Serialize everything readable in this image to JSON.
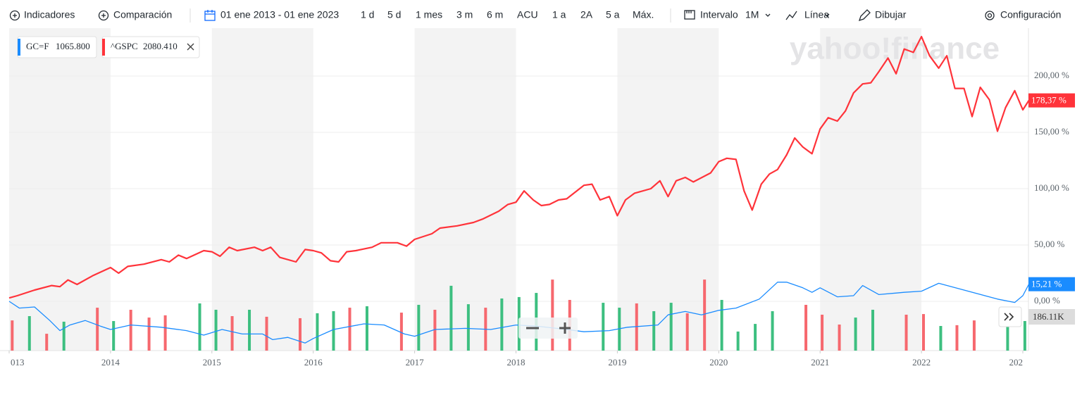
{
  "toolbar": {
    "indicators": "Indicadores",
    "comparison": "Comparación",
    "date_range": "01 ene 2013 - 01 ene 2023",
    "ranges": [
      "1 d",
      "5 d",
      "1 mes",
      "3 m",
      "6 m",
      "ACU",
      "1 a",
      "2A",
      "5 a",
      "Máx."
    ],
    "interval_label": "Intervalo",
    "interval": "1M",
    "chart_style": "Línea",
    "draw": "Dibujar",
    "settings": "Configuración"
  },
  "chart_data": {
    "type": "line",
    "watermark": "yahoo!finance",
    "xlim": [
      2013,
      2023.06
    ],
    "ylim": [
      -43.75,
      242.5
    ],
    "y2lim": [
      0,
      2029
    ],
    "xticks": [
      {
        "value": 2013,
        "label": "013"
      },
      2014,
      2015,
      2016,
      2017,
      2018,
      2019,
      2020,
      2021,
      2022,
      {
        "value": 2023,
        "label": "202"
      }
    ],
    "yticks": [
      {
        "value": 0,
        "label": "0,00 %"
      },
      {
        "value": 50,
        "label": "50,00 %"
      },
      {
        "value": 100,
        "label": "100,00 %"
      },
      {
        "value": 150,
        "label": "150,00 %"
      },
      {
        "value": 200,
        "label": "200,00 %"
      }
    ],
    "grid": true,
    "series": [
      {
        "name": "^GSPC",
        "base_price": "2080.410",
        "color": "#ff333a",
        "end_label": "178,37 %",
        "x": [
          2013.0,
          2013.08,
          2013.25,
          2013.42,
          2013.5,
          2013.58,
          2013.67,
          2013.83,
          2014.0,
          2014.08,
          2014.17,
          2014.33,
          2014.5,
          2014.58,
          2014.67,
          2014.75,
          2014.92,
          2015.0,
          2015.08,
          2015.17,
          2015.25,
          2015.42,
          2015.5,
          2015.58,
          2015.67,
          2015.83,
          2015.92,
          2016.0,
          2016.08,
          2016.17,
          2016.25,
          2016.33,
          2016.42,
          2016.58,
          2016.67,
          2016.83,
          2016.92,
          2017.0,
          2017.17,
          2017.25,
          2017.42,
          2017.58,
          2017.67,
          2017.83,
          2017.92,
          2018.0,
          2018.08,
          2018.17,
          2018.25,
          2018.33,
          2018.42,
          2018.5,
          2018.67,
          2018.75,
          2018.83,
          2018.92,
          2019.0,
          2019.08,
          2019.17,
          2019.33,
          2019.42,
          2019.5,
          2019.58,
          2019.67,
          2019.75,
          2019.92,
          2020.0,
          2020.08,
          2020.17,
          2020.25,
          2020.33,
          2020.42,
          2020.5,
          2020.58,
          2020.67,
          2020.75,
          2020.83,
          2020.92,
          2021.0,
          2021.08,
          2021.17,
          2021.25,
          2021.33,
          2021.42,
          2021.5,
          2021.58,
          2021.67,
          2021.75,
          2021.83,
          2021.92,
          2022.0,
          2022.08,
          2022.17,
          2022.25,
          2022.33,
          2022.42,
          2022.5,
          2022.58,
          2022.67,
          2022.75,
          2022.83,
          2022.92,
          2023.0,
          2023.06
        ],
        "values": [
          3,
          5,
          10,
          14,
          13,
          19,
          15,
          23,
          30,
          25,
          31,
          33,
          37,
          35,
          41,
          38,
          45,
          44,
          40,
          48,
          45,
          48,
          45,
          48,
          39,
          35,
          46,
          45,
          43,
          36,
          35,
          44,
          45,
          48,
          52,
          52,
          49,
          55,
          60,
          65,
          67,
          70,
          73,
          80,
          86,
          88,
          98,
          90,
          85,
          86,
          90,
          91,
          103,
          104,
          90,
          93,
          76,
          90,
          96,
          100,
          107,
          93,
          107,
          110,
          106,
          114,
          124,
          127,
          126,
          98,
          81,
          104,
          113,
          117,
          130,
          145,
          137,
          131,
          153,
          163,
          160,
          169,
          185,
          193,
          194,
          204,
          216,
          202,
          224,
          221,
          235,
          218,
          207,
          218,
          189,
          189,
          164,
          190,
          179,
          151,
          172,
          187,
          170,
          178.37
        ]
      },
      {
        "name": "GC=F",
        "base_price": "1065.800",
        "color": "#1a8cff",
        "end_label": "15,21 %",
        "x": [
          2013.0,
          2013.1,
          2013.25,
          2013.4,
          2013.5,
          2013.6,
          2013.75,
          2013.9,
          2014.0,
          2014.2,
          2014.5,
          2014.75,
          2014.92,
          2015.1,
          2015.3,
          2015.5,
          2015.6,
          2015.75,
          2015.92,
          2016.0,
          2016.2,
          2016.5,
          2016.7,
          2016.9,
          2017.0,
          2017.2,
          2017.5,
          2017.75,
          2018.0,
          2018.2,
          2018.5,
          2018.67,
          2018.92,
          2019.1,
          2019.4,
          2019.5,
          2019.67,
          2019.83,
          2020.0,
          2020.17,
          2020.4,
          2020.58,
          2020.67,
          2020.83,
          2020.92,
          2021.0,
          2021.17,
          2021.33,
          2021.42,
          2021.58,
          2021.83,
          2022.0,
          2022.17,
          2022.42,
          2022.75,
          2022.92,
          2023.0,
          2023.06
        ],
        "values": [
          0,
          -6,
          -5,
          -17,
          -26,
          -21,
          -17,
          -22,
          -25,
          -21,
          -23,
          -26,
          -30,
          -25,
          -29,
          -29,
          -34,
          -32,
          -37,
          -33,
          -25,
          -20,
          -21,
          -29,
          -31,
          -25,
          -24,
          -25,
          -21,
          -22,
          -25,
          -27,
          -26,
          -23,
          -21,
          -12,
          -9,
          -12,
          -8,
          -6,
          2,
          17,
          17,
          12,
          8,
          12,
          4,
          5,
          14,
          6,
          8,
          9,
          16,
          10,
          2,
          -1,
          5,
          15.21
        ]
      }
    ],
    "volume": {
      "axis": "y2",
      "end_label": "186.11K",
      "x": [
        2013.03,
        2013.2,
        2013.37,
        2013.54,
        2013.87,
        2014.03,
        2014.2,
        2014.38,
        2014.54,
        2014.88,
        2015.04,
        2015.2,
        2015.37,
        2015.54,
        2015.87,
        2016.04,
        2016.2,
        2016.36,
        2016.53,
        2016.87,
        2017.04,
        2017.2,
        2017.36,
        2017.53,
        2017.7,
        2017.86,
        2018.03,
        2018.2,
        2018.36,
        2018.53,
        2018.86,
        2019.02,
        2019.19,
        2019.36,
        2019.53,
        2019.69,
        2019.86,
        2020.03,
        2020.19,
        2020.36,
        2020.53,
        2020.86,
        2021.02,
        2021.19,
        2021.35,
        2021.52,
        2021.85,
        2022.02,
        2022.19,
        2022.35,
        2022.52,
        2022.85,
        2023.02
      ],
      "values": [
        190,
        217,
        106,
        182,
        270,
        186,
        257,
        208,
        222,
        297,
        257,
        217,
        257,
        213,
        204,
        235,
        248,
        270,
        279,
        239,
        288,
        257,
        408,
        292,
        270,
        328,
        337,
        363,
        447,
        319,
        301,
        270,
        297,
        248,
        301,
        235,
        447,
        319,
        120,
        168,
        248,
        288,
        226,
        164,
        208,
        257,
        226,
        230,
        155,
        160,
        190,
        190,
        186.11
      ],
      "colors": [
        "#f6686e",
        "#3dbf80",
        "#f6686e",
        "#3dbf80",
        "#f6686e",
        "#3dbf80",
        "#f6686e",
        "#f6686e",
        "#f6686e",
        "#3dbf80",
        "#3dbf80",
        "#f6686e",
        "#3dbf80",
        "#f6686e",
        "#f6686e",
        "#3dbf80",
        "#3dbf80",
        "#f6686e",
        "#3dbf80",
        "#f6686e",
        "#3dbf80",
        "#f6686e",
        "#3dbf80",
        "#3dbf80",
        "#f6686e",
        "#3dbf80",
        "#3dbf80",
        "#3dbf80",
        "#f6686e",
        "#f6686e",
        "#3dbf80",
        "#3dbf80",
        "#f6686e",
        "#3dbf80",
        "#3dbf80",
        "#f6686e",
        "#f6686e",
        "#3dbf80",
        "#3dbf80",
        "#3dbf80",
        "#3dbf80",
        "#f6686e",
        "#f6686e",
        "#f6686e",
        "#3dbf80",
        "#3dbf80",
        "#f6686e",
        "#f6686e",
        "#3dbf80",
        "#f6686e",
        "#f6686e",
        "#3dbf80",
        "#3dbf80"
      ]
    }
  }
}
